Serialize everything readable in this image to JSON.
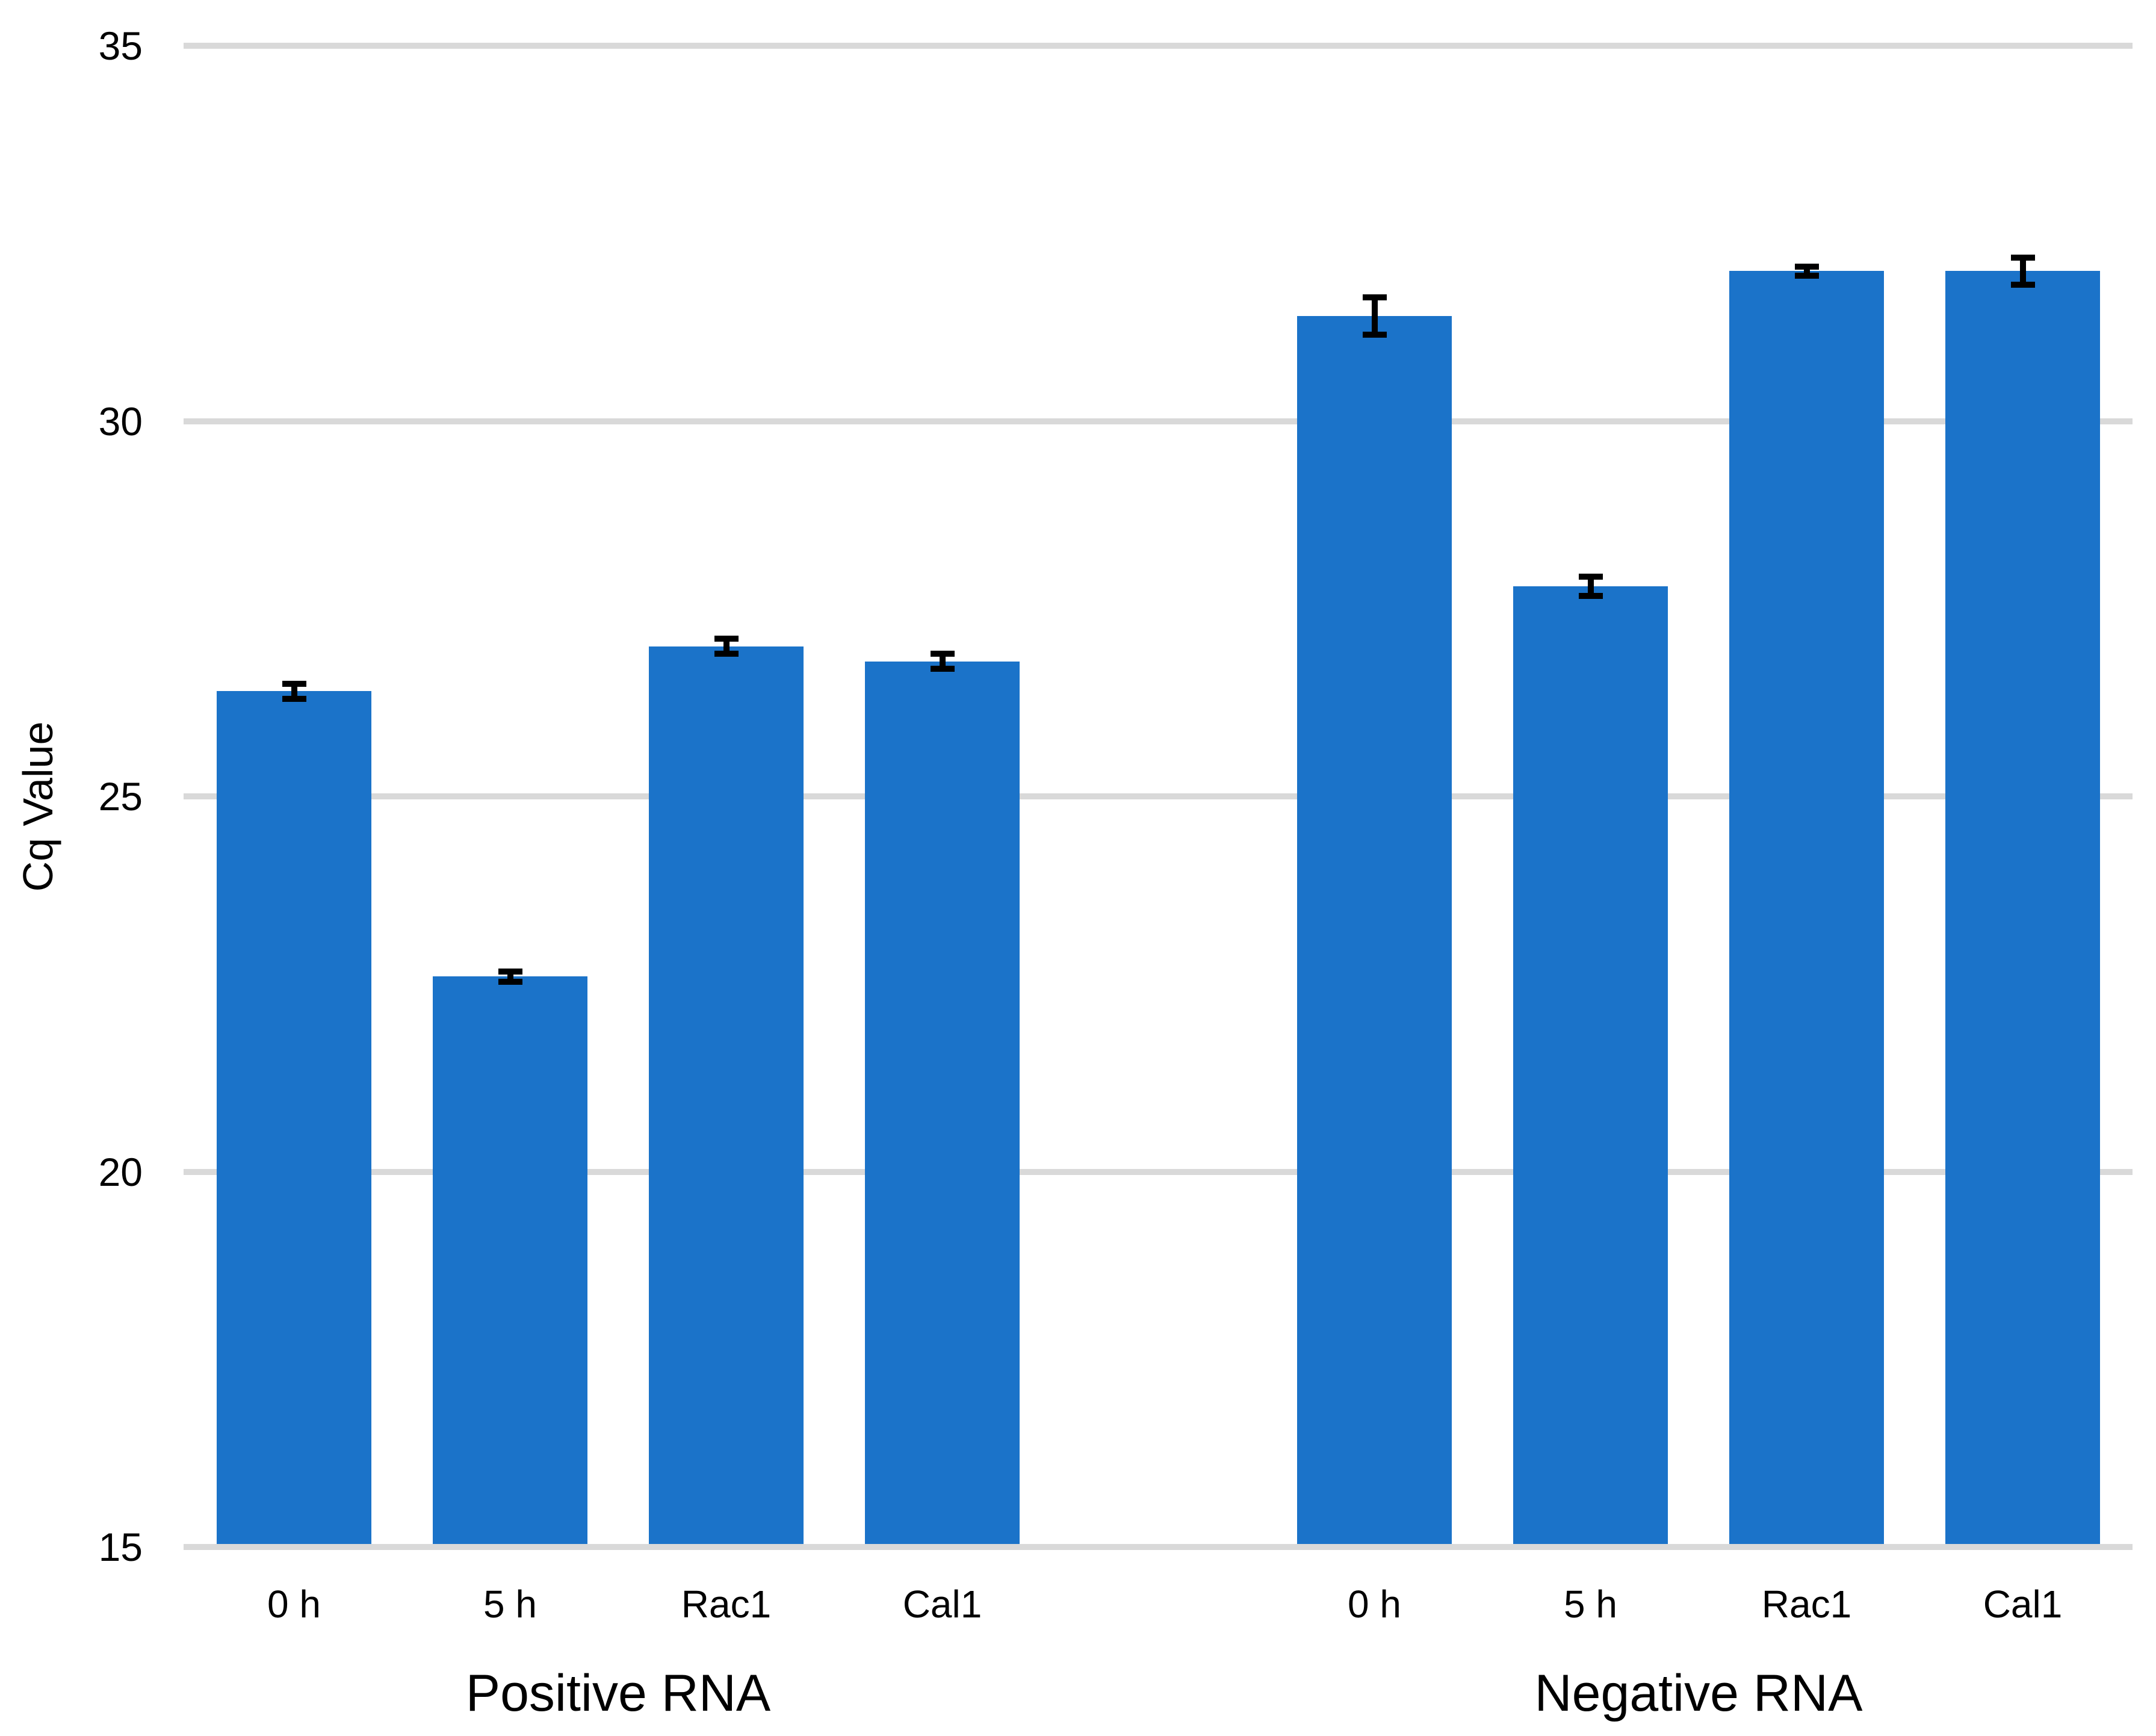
{
  "chart_data": {
    "type": "bar",
    "title": "",
    "xlabel": "",
    "ylabel": "Cq Value",
    "ylim": [
      15,
      35
    ],
    "yticks": [
      15,
      20,
      25,
      30,
      35
    ],
    "grid": true,
    "legend": "none",
    "bar_color": "#1B73C9",
    "gridline_color": "#D9D9D9",
    "error_bar_color": "#000000",
    "groups": [
      {
        "label": "Positive RNA",
        "categories": [
          "0 h",
          "5 h",
          "Rac1",
          "Cal1"
        ],
        "series": [
          {
            "name": "Cq Value",
            "values": [
              26.4,
              22.6,
              27.0,
              26.8
            ],
            "errors": [
              0.1,
              0.07,
              0.1,
              0.1
            ]
          }
        ]
      },
      {
        "label": "Negative RNA",
        "categories": [
          "0 h",
          "5 h",
          "Rac1",
          "Cal1"
        ],
        "series": [
          {
            "name": "Cq Value",
            "values": [
              31.4,
              27.8,
              32.0,
              32.0
            ],
            "errors": [
              0.25,
              0.13,
              0.06,
              0.18
            ]
          }
        ]
      }
    ]
  }
}
